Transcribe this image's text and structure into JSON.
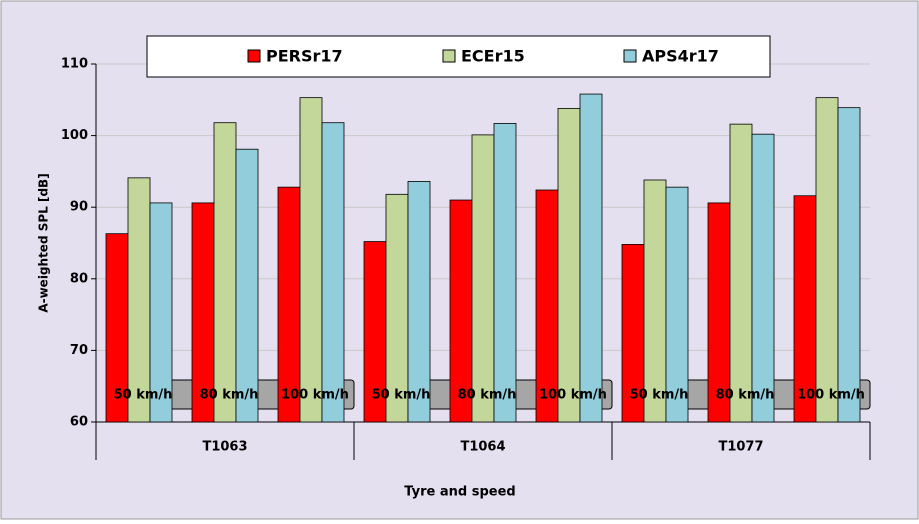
{
  "chart_data": {
    "type": "bar",
    "x_label": "Tyre and speed",
    "y_label": "A-weighted SPL [dB]",
    "groups": [
      "T1063",
      "T1064",
      "T1077"
    ],
    "categories": [
      "50 km/h",
      "80 km/h",
      "100 km/h",
      "50 km/h",
      "80 km/h",
      "100 km/h",
      "50 km/h",
      "80 km/h",
      "100 km/h"
    ],
    "series": [
      {
        "name": "PERSr17",
        "color": "#ff0000",
        "values": [
          86.3,
          90.6,
          92.8,
          85.2,
          91.0,
          92.4,
          84.8,
          90.6,
          91.6
        ]
      },
      {
        "name": "ECEr15",
        "color": "#c4d79b",
        "values": [
          94.1,
          101.8,
          105.3,
          91.8,
          100.1,
          103.8,
          93.8,
          101.6,
          105.3
        ]
      },
      {
        "name": "APS4r17",
        "color": "#92cddc",
        "values": [
          90.6,
          98.1,
          101.8,
          93.6,
          101.7,
          105.8,
          92.8,
          100.2,
          103.9
        ]
      }
    ],
    "ylim": [
      60,
      110
    ],
    "yticks": [
      60,
      70,
      80,
      90,
      100,
      110
    ],
    "grid": true
  }
}
